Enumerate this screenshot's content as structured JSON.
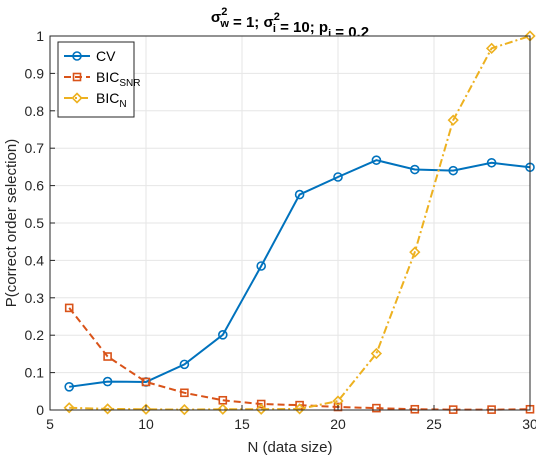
{
  "chart_data": {
    "type": "line",
    "title": {
      "parts": [
        {
          "text": "σ",
          "sub": "w",
          "sup": "2"
        },
        {
          "text": " = 1; "
        },
        {
          "text": "σ",
          "sub": "i",
          "sup": "2"
        },
        {
          "text": " = 10; "
        },
        {
          "text": "p",
          "sub": "i"
        },
        {
          "text": " = 0.2"
        }
      ]
    },
    "xlabel": "N (data size)",
    "ylabel": "P(correct order selection)",
    "xlim": [
      5,
      30
    ],
    "ylim": [
      0,
      1
    ],
    "xticks": [
      5,
      10,
      15,
      20,
      25,
      30
    ],
    "yticks": [
      0,
      0.1,
      0.2,
      0.3,
      0.4,
      0.5,
      0.6,
      0.7,
      0.8,
      0.9,
      1
    ],
    "ytick_labels": [
      "0",
      "0.1",
      "0.2",
      "0.3",
      "0.4",
      "0.5",
      "0.6",
      "0.7",
      "0.8",
      "0.9",
      "1"
    ],
    "grid": true,
    "legend_position": "top-left",
    "x": [
      6,
      8,
      10,
      12,
      14,
      16,
      18,
      20,
      22,
      24,
      26,
      28,
      30
    ],
    "series": [
      {
        "name": "CV",
        "name_sub": "",
        "color": "#0072BD",
        "line": "solid",
        "marker": "circle",
        "values": [
          0.062,
          0.076,
          0.075,
          0.122,
          0.201,
          0.385,
          0.576,
          0.623,
          0.668,
          0.643,
          0.64,
          0.661,
          0.649
        ]
      },
      {
        "name": "BIC",
        "name_sub": "SNR",
        "color": "#D95319",
        "line": "dashed",
        "marker": "square",
        "values": [
          0.273,
          0.143,
          0.075,
          0.046,
          0.026,
          0.016,
          0.013,
          0.008,
          0.005,
          0.002,
          0.001,
          0.001,
          0.002
        ]
      },
      {
        "name": "BIC",
        "name_sub": "N",
        "color": "#EDB120",
        "line": "dashdot",
        "marker": "diamond",
        "values": [
          0.006,
          0.003,
          0.002,
          0.001,
          0.002,
          0.002,
          0.003,
          0.024,
          0.151,
          0.422,
          0.775,
          0.967,
          1.0
        ]
      }
    ]
  }
}
